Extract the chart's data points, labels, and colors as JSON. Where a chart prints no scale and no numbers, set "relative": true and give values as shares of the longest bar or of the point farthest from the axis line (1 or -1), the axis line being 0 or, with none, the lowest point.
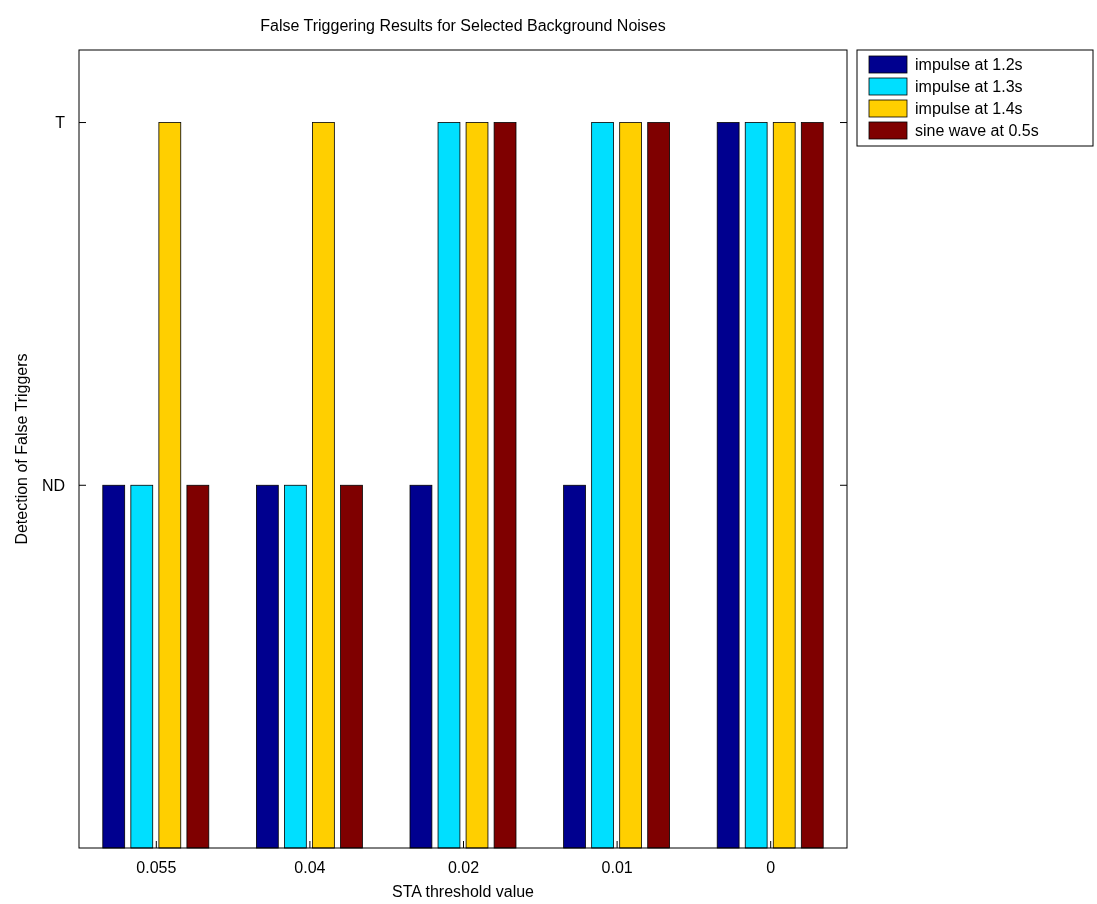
{
  "chart_data": {
    "type": "bar",
    "title": "False Triggering Results for Selected Background Noises",
    "xlabel": "STA threshold value",
    "ylabel": "Detection of False Triggers",
    "categories": [
      "0.055",
      "0.04",
      "0.02",
      "0.01",
      "0"
    ],
    "series": [
      {
        "name": "impulse at 1.2s",
        "color": "#00008f",
        "values": [
          0.5,
          0.5,
          0.5,
          0.5,
          1
        ]
      },
      {
        "name": "impulse at 1.3s",
        "color": "#00dfff",
        "values": [
          0.5,
          0.5,
          1,
          1,
          1
        ]
      },
      {
        "name": "impulse at 1.4s",
        "color": "#ffcf00",
        "values": [
          1,
          1,
          1,
          1,
          1
        ]
      },
      {
        "name": "sine wave at 0.5s",
        "color": "#7f0000",
        "values": [
          0.5,
          0.5,
          1,
          1,
          1
        ]
      }
    ],
    "relative": true,
    "annotations": [
      "ND",
      "T"
    ],
    "legend": "top right"
  }
}
